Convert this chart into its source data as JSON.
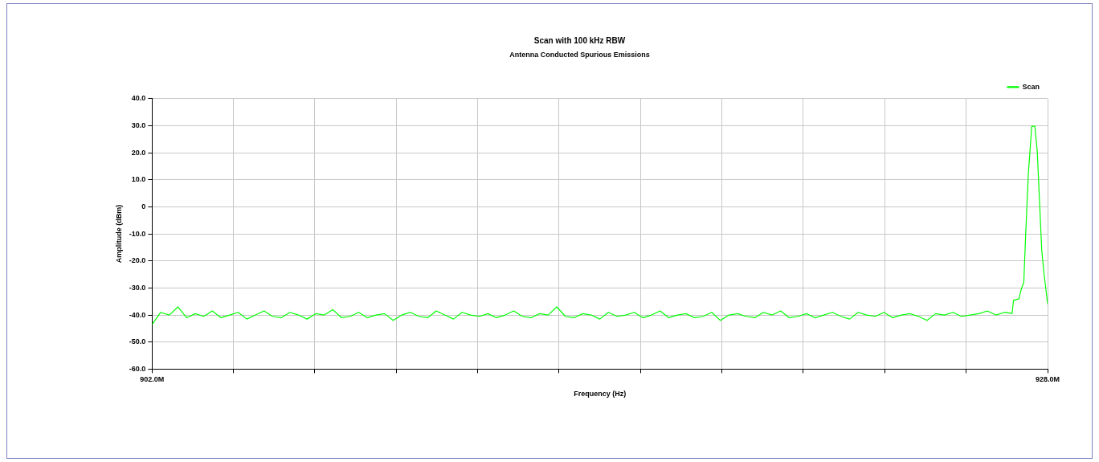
{
  "chart_data": {
    "type": "line",
    "title": "Scan with 100 kHz RBW",
    "subtitle": "Antenna Conducted Spurious Emissions",
    "xlabel": "Frequency (Hz)",
    "ylabel": "Amplitude (dBm)",
    "xlim": [
      902000000,
      928000000
    ],
    "xticks": [
      {
        "value": 902000000,
        "label": "902.0M"
      },
      {
        "value": 904363636,
        "label": null
      },
      {
        "value": 906727273,
        "label": null
      },
      {
        "value": 909090909,
        "label": null
      },
      {
        "value": 911454545,
        "label": null
      },
      {
        "value": 913818182,
        "label": null
      },
      {
        "value": 916181818,
        "label": null
      },
      {
        "value": 918545455,
        "label": null
      },
      {
        "value": 920909091,
        "label": null
      },
      {
        "value": 923272727,
        "label": null
      },
      {
        "value": 925636364,
        "label": null
      },
      {
        "value": 928000000,
        "label": "928.0M"
      }
    ],
    "ylim": [
      -60,
      40
    ],
    "yticks": [
      {
        "value": -60,
        "label": "-60.0"
      },
      {
        "value": -50,
        "label": "-50.0"
      },
      {
        "value": -40,
        "label": "-40.0"
      },
      {
        "value": -30,
        "label": "-30.0"
      },
      {
        "value": -20,
        "label": "-20.0"
      },
      {
        "value": -10,
        "label": "-10.0"
      },
      0,
      {
        "value": 10,
        "label": "10.0"
      },
      {
        "value": 20,
        "label": "20.0"
      },
      {
        "value": 30,
        "label": "30.0"
      },
      {
        "value": 40,
        "label": "40.0"
      }
    ],
    "grid": true,
    "legend": "top right",
    "series": [
      {
        "name": "Scan",
        "color": "#00ff00",
        "x": [
          902000000,
          902250000,
          902500000,
          902750000,
          903000000,
          903250000,
          903500000,
          903750000,
          904000000,
          904250000,
          904500000,
          904750000,
          905000000,
          905250000,
          905500000,
          905750000,
          906000000,
          906250000,
          906500000,
          906750000,
          907000000,
          907250000,
          907500000,
          907750000,
          908000000,
          908250000,
          908500000,
          908750000,
          909000000,
          909250000,
          909500000,
          909750000,
          910000000,
          910250000,
          910500000,
          910750000,
          911000000,
          911250000,
          911500000,
          911750000,
          912000000,
          912250000,
          912500000,
          912750000,
          913000000,
          913250000,
          913500000,
          913750000,
          914000000,
          914250000,
          914500000,
          914750000,
          915000000,
          915250000,
          915500000,
          915750000,
          916000000,
          916250000,
          916500000,
          916750000,
          917000000,
          917250000,
          917500000,
          917750000,
          918000000,
          918250000,
          918500000,
          918750000,
          919000000,
          919250000,
          919500000,
          919750000,
          920000000,
          920250000,
          920500000,
          920750000,
          921000000,
          921250000,
          921500000,
          921750000,
          922000000,
          922250000,
          922500000,
          922750000,
          923000000,
          923250000,
          923500000,
          923750000,
          924000000,
          924250000,
          924500000,
          924750000,
          925000000,
          925250000,
          925500000,
          925750000,
          926000000,
          926250000,
          926500000,
          926750000,
          926970000,
          927010000,
          927170000,
          927230000,
          927310000,
          927360000,
          927440000,
          927540000,
          927630000,
          927700000,
          927830000,
          927890000,
          927980000,
          928000000
        ],
        "values": [
          -43.5,
          -39,
          -40,
          -37,
          -41,
          -39.5,
          -40.5,
          -38.5,
          -41,
          -40,
          -39,
          -41.5,
          -40,
          -38.5,
          -40.5,
          -41,
          -39,
          -40,
          -41.5,
          -39.5,
          -40,
          -38,
          -41,
          -40.5,
          -39,
          -41,
          -40,
          -39.5,
          -42,
          -40,
          -39,
          -40.5,
          -41,
          -38.5,
          -40,
          -41.5,
          -39,
          -40,
          -40.5,
          -39.5,
          -41,
          -40,
          -38.5,
          -40.5,
          -41,
          -39.5,
          -40,
          -37,
          -40.5,
          -41,
          -39.5,
          -40,
          -41.5,
          -39,
          -40.5,
          -40,
          -39,
          -41,
          -40,
          -38.5,
          -41,
          -40,
          -39.5,
          -41,
          -40.5,
          -39,
          -42,
          -40,
          -39.5,
          -40.5,
          -41,
          -39,
          -40,
          -38.5,
          -41,
          -40.5,
          -39.5,
          -41,
          -40,
          -39,
          -40.5,
          -41.5,
          -39,
          -40,
          -40.5,
          -39,
          -41,
          -40,
          -39.5,
          -40.5,
          -42,
          -39.5,
          -40,
          -39,
          -40.5,
          -40,
          -39.5,
          -38.5,
          -40,
          -39,
          -39.4,
          -34.6,
          -34,
          -30.7,
          -27.8,
          -11.4,
          11.9,
          29.8,
          29.8,
          20.6,
          -16,
          -24,
          -33.6,
          -36
        ]
      }
    ]
  }
}
